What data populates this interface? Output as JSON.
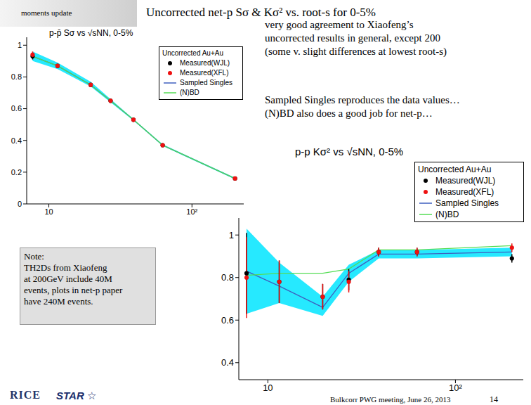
{
  "header": "moments update",
  "title": "Uncorrected net-p Sσ & Kσ² vs. root-s for 0-5%",
  "text": [
    [
      "very good agreement to Xiaofeng’s",
      "uncorrected results in general, except 200",
      "(some v. slight differences at lowest root-s)"
    ],
    [
      "Sampled Singles reproduces the data values…",
      "(N)BD also does a good job for net-p…"
    ]
  ],
  "note": [
    "Note:",
    "TH2Ds from Xiaofeng",
    "at 200GeV include 40M",
    "events, plots in net-p paper",
    "have 240M events."
  ],
  "logos": [
    "RICE",
    "STAR ☆"
  ],
  "footer": "Bulkcorr PWG meeting, June 26, 2013",
  "page": 14,
  "chart_data": [
    {
      "type": "line",
      "title": "p-p̄ Sσ vs √sNN, 0-5%",
      "log": "x",
      "grid": false,
      "legend": "upper right",
      "legend_title": "Uncorrected Au+Au",
      "x": [
        7.7,
        11.5,
        19.6,
        27,
        39,
        62.4,
        200
      ],
      "xlim": [
        7,
        230
      ],
      "xticks": [
        10,
        {
          "value": 100,
          "label": "10²"
        }
      ],
      "ylim": [
        0,
        1.05
      ],
      "yticks": [
        0,
        0.2,
        0.4,
        0.6,
        0.8,
        1
      ],
      "series": [
        {
          "name": "Measured(WJL)",
          "type": "scatter",
          "marker": "circle",
          "color": "#000000",
          "values": [
            0.93,
            0.87,
            0.75,
            0.65,
            0.53,
            0.37,
            0.16
          ],
          "errors": [
            0.02,
            0.012,
            0.008,
            0.006,
            0.005,
            0.004,
            0.004
          ]
        },
        {
          "name": "Measured(XFL)",
          "type": "scatter",
          "marker": "circle",
          "color": "#ee1111",
          "values": [
            0.94,
            0.87,
            0.75,
            0.65,
            0.53,
            0.37,
            0.16
          ],
          "errors": [
            0.02,
            0.012,
            0.008,
            0.006,
            0.005,
            0.004,
            0.004
          ]
        },
        {
          "name": "Sampled Singles",
          "type": "line",
          "line_style": "solid",
          "color": "#3f5fbf",
          "values": [
            0.93,
            0.87,
            0.75,
            0.65,
            0.53,
            0.37,
            0.16
          ],
          "band_low": [
            0.9,
            0.85,
            0.74,
            0.64,
            0.525,
            0.365,
            0.155
          ],
          "band_high": [
            0.96,
            0.89,
            0.77,
            0.66,
            0.535,
            0.375,
            0.165
          ]
        },
        {
          "name": "(N)BD",
          "type": "line",
          "line_style": "solid",
          "color": "#55dd55",
          "values": [
            0.93,
            0.87,
            0.75,
            0.65,
            0.53,
            0.37,
            0.16
          ]
        }
      ]
    },
    {
      "type": "line",
      "title": "p-p Kσ² vs √sNN, 0-5%",
      "log": "x",
      "grid": false,
      "legend": "upper right",
      "legend_title": "Uncorrected Au+Au",
      "x": [
        7.7,
        11.5,
        19.6,
        27,
        39,
        62.4,
        200
      ],
      "xlim": [
        7,
        230
      ],
      "xticks": [
        10,
        {
          "value": 100,
          "label": "10²"
        }
      ],
      "ylim": [
        0.32,
        1.08
      ],
      "yticks": [
        0.4,
        0.6,
        0.8,
        1
      ],
      "series": [
        {
          "name": "Measured(WJL)",
          "type": "scatter",
          "marker": "circle",
          "color": "#000000",
          "values": [
            0.82,
            0.78,
            0.71,
            0.79,
            0.92,
            0.92,
            0.89
          ],
          "errors": [
            0.19,
            0.1,
            0.06,
            0.05,
            0.02,
            0.02,
            0.02
          ]
        },
        {
          "name": "Measured(XFL)",
          "type": "scatter",
          "marker": "circle",
          "color": "#ee1111",
          "values": [
            0.8,
            0.78,
            0.71,
            0.78,
            0.92,
            0.92,
            0.94
          ],
          "errors": [
            0.19,
            0.1,
            0.06,
            0.05,
            0.02,
            0.02,
            0.02
          ]
        },
        {
          "name": "Sampled Singles",
          "type": "line",
          "line_style": "solid",
          "color": "#3f5fbf",
          "values": [
            0.83,
            0.76,
            0.66,
            0.82,
            0.91,
            0.91,
            0.92
          ],
          "band_low": [
            0.63,
            0.68,
            0.62,
            0.78,
            0.89,
            0.89,
            0.9
          ],
          "band_high": [
            1.03,
            0.87,
            0.71,
            0.86,
            0.93,
            0.93,
            0.94
          ]
        },
        {
          "name": "(N)BD",
          "type": "line",
          "line_style": "solid",
          "color": "#55dd55",
          "values": [
            0.81,
            0.82,
            0.82,
            0.84,
            0.93,
            0.93,
            0.95
          ]
        }
      ]
    }
  ]
}
